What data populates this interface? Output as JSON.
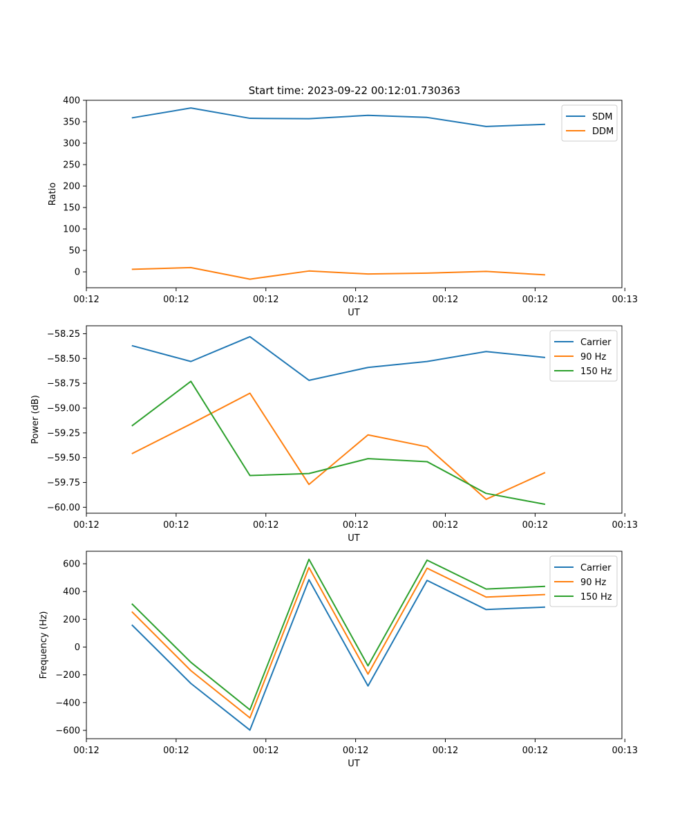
{
  "figure": {
    "title": "Start time: 2023-09-22 00:12:01.730363"
  },
  "colors": {
    "blue": "#1f77b4",
    "orange": "#ff7f0e",
    "green": "#2ca02c"
  },
  "chart_data": [
    {
      "type": "line",
      "title": "Start time: 2023-09-22 00:12:01.730363",
      "xlabel": "UT",
      "ylabel": "Ratio",
      "x": [
        1,
        2,
        3,
        4,
        5,
        6,
        7,
        8
      ],
      "xlim": [
        0.23,
        9.3
      ],
      "xticks": [
        0.23,
        1.75,
        3.27,
        4.79,
        6.31,
        7.83,
        9.35
      ],
      "xtick_labels": [
        "00:12",
        "00:12",
        "00:12",
        "00:12",
        "00:12",
        "00:12",
        "00:13"
      ],
      "ylim": [
        -37,
        400
      ],
      "yticks": [
        0,
        50,
        100,
        150,
        200,
        250,
        300,
        350,
        400
      ],
      "ytick_labels": [
        "0",
        "50",
        "100",
        "150",
        "200",
        "250",
        "300",
        "350",
        "400"
      ],
      "legend_position": "top-right",
      "series": [
        {
          "name": "SDM",
          "color": "#1f77b4",
          "values": [
            359,
            382,
            358,
            357,
            365,
            360,
            339,
            344
          ]
        },
        {
          "name": "DDM",
          "color": "#ff7f0e",
          "values": [
            6,
            10,
            -17,
            2,
            -5,
            -3,
            1,
            -7
          ]
        }
      ]
    },
    {
      "type": "line",
      "title": "",
      "xlabel": "UT",
      "ylabel": "Power (dB)",
      "x": [
        1,
        2,
        3,
        4,
        5,
        6,
        7,
        8
      ],
      "xlim": [
        0.23,
        9.3
      ],
      "xticks": [
        0.23,
        1.75,
        3.27,
        4.79,
        6.31,
        7.83,
        9.35
      ],
      "xtick_labels": [
        "00:12",
        "00:12",
        "00:12",
        "00:12",
        "00:12",
        "00:12",
        "00:13"
      ],
      "ylim": [
        -60.06,
        -58.17
      ],
      "yticks": [
        -60.0,
        -59.75,
        -59.5,
        -59.25,
        -59.0,
        -58.75,
        -58.5,
        -58.25
      ],
      "ytick_labels": [
        "−60.00",
        "−59.75",
        "−59.50",
        "−59.25",
        "−59.00",
        "−58.75",
        "−58.50",
        "−58.25"
      ],
      "legend_position": "top-right",
      "series": [
        {
          "name": "Carrier",
          "color": "#1f77b4",
          "values": [
            -58.37,
            -58.53,
            -58.28,
            -58.72,
            -58.59,
            -58.53,
            -58.43,
            -58.49
          ]
        },
        {
          "name": "90 Hz",
          "color": "#ff7f0e",
          "values": [
            -59.46,
            -59.16,
            -58.85,
            -59.77,
            -59.27,
            -59.39,
            -59.92,
            -59.65
          ]
        },
        {
          "name": "150 Hz",
          "color": "#2ca02c",
          "values": [
            -59.18,
            -58.73,
            -59.68,
            -59.66,
            -59.51,
            -59.54,
            -59.86,
            -59.97
          ]
        }
      ]
    },
    {
      "type": "line",
      "title": "",
      "xlabel": "UT",
      "ylabel": "Frequency (Hz)",
      "x": [
        1,
        2,
        3,
        4,
        5,
        6,
        7,
        8
      ],
      "xlim": [
        0.23,
        9.3
      ],
      "xticks": [
        0.23,
        1.75,
        3.27,
        4.79,
        6.31,
        7.83,
        9.35
      ],
      "xtick_labels": [
        "00:12",
        "00:12",
        "00:12",
        "00:12",
        "00:12",
        "00:12",
        "00:13"
      ],
      "ylim": [
        -660,
        690
      ],
      "yticks": [
        -600,
        -400,
        -200,
        0,
        200,
        400,
        600
      ],
      "ytick_labels": [
        "−600",
        "−400",
        "−200",
        "0",
        "200",
        "400",
        "600"
      ],
      "legend_position": "top-right",
      "series": [
        {
          "name": "Carrier",
          "color": "#1f77b4",
          "values": [
            160,
            -262,
            -598,
            485,
            -280,
            480,
            270,
            288
          ]
        },
        {
          "name": "90 Hz",
          "color": "#ff7f0e",
          "values": [
            255,
            -170,
            -510,
            573,
            -195,
            568,
            360,
            378
          ]
        },
        {
          "name": "150 Hz",
          "color": "#2ca02c",
          "values": [
            312,
            -110,
            -452,
            632,
            -135,
            626,
            418,
            437
          ]
        }
      ]
    }
  ]
}
